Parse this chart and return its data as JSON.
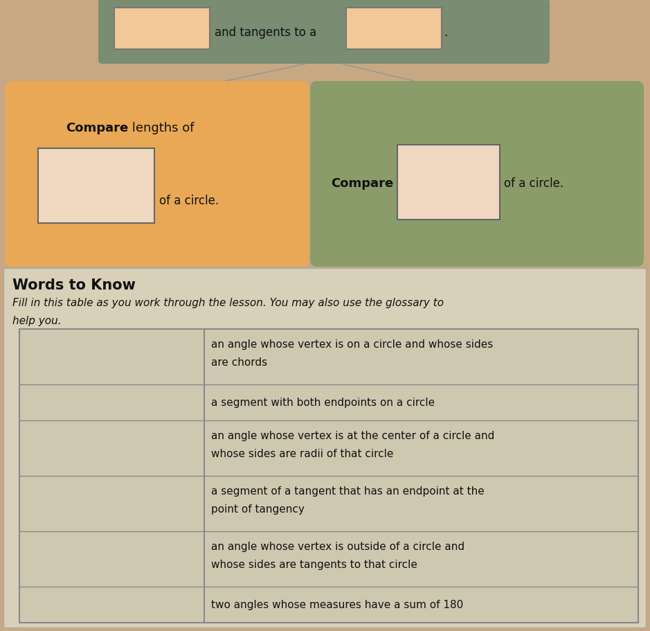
{
  "bg_color": "#c8a882",
  "top_bar_bg": "#7a8c72",
  "left_box_bg": "#e8a855",
  "right_box_bg": "#8a9c6a",
  "bottom_section_bg": "#d8d0b8",
  "table_bg": "#cec8b0",
  "blank_fill": "#f2c898",
  "blank_fill2": "#f0d8c0",
  "table_border": "#888888",
  "top_text": "and tangents to a",
  "left_bold": "Compare",
  "left_rest": " lengths of",
  "left_suffix": "of a circle.",
  "right_bold": "Compare",
  "right_suffix": "of a circle.",
  "words_title": "Words to Know",
  "subtitle_line1": "Fill in this table as you work through the lesson. You may also use the glossary to",
  "subtitle_line2": "help you.",
  "table_rows": [
    "an angle whose vertex is on a circle and whose sides\nare chords",
    "a segment with both endpoints on a circle",
    "an angle whose vertex is at the center of a circle and\nwhose sides are radii of that circle",
    "a segment of a tangent that has an endpoint at the\npoint of tangency",
    "an angle whose vertex is outside of a circle and\nwhose sides are tangents to that circle",
    "two angles whose measures have a sum of 180"
  ],
  "fig_w": 9.39,
  "fig_h": 9.12,
  "dpi": 100
}
